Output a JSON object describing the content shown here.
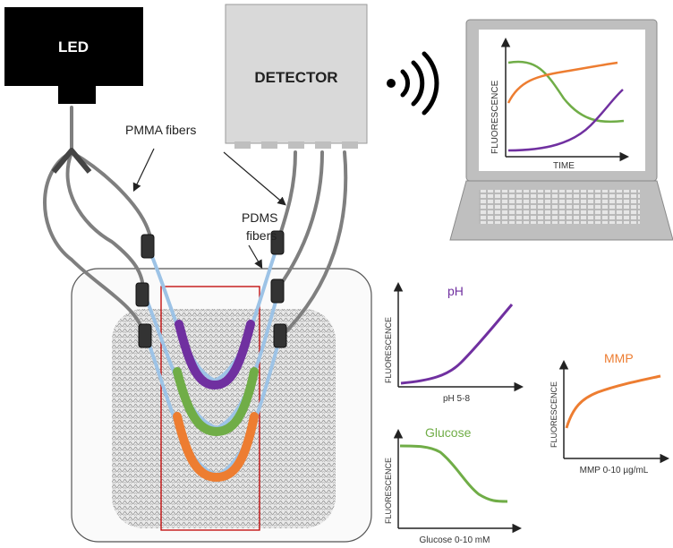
{
  "led": {
    "label": "LED"
  },
  "detector": {
    "label": "DETECTOR"
  },
  "annotations": {
    "pmma": "PMMA fibers",
    "pdms_line1": "PDMS",
    "pdms_line2": "fibers"
  },
  "laptop": {
    "ylabel": "FLUORESCENCE",
    "xlabel": "TIME"
  },
  "charts": {
    "ph": {
      "title": "pH",
      "ylabel": "FLUORESCENCE",
      "xlabel": "pH 5-8"
    },
    "glucose": {
      "title": "Glucose",
      "ylabel": "FLUORESCENCE",
      "xlabel": "Glucose 0-10 mM"
    },
    "mmp": {
      "title": "MMP",
      "ylabel": "FLUORESCENCE",
      "xlabel": "MMP 0-10 µg/mL"
    }
  },
  "colors": {
    "ph": "#7030a0",
    "glucose": "#70ad47",
    "mmp": "#ed7d31",
    "pdms": "#9dc3e6",
    "fiber": "#7f7f7f"
  }
}
